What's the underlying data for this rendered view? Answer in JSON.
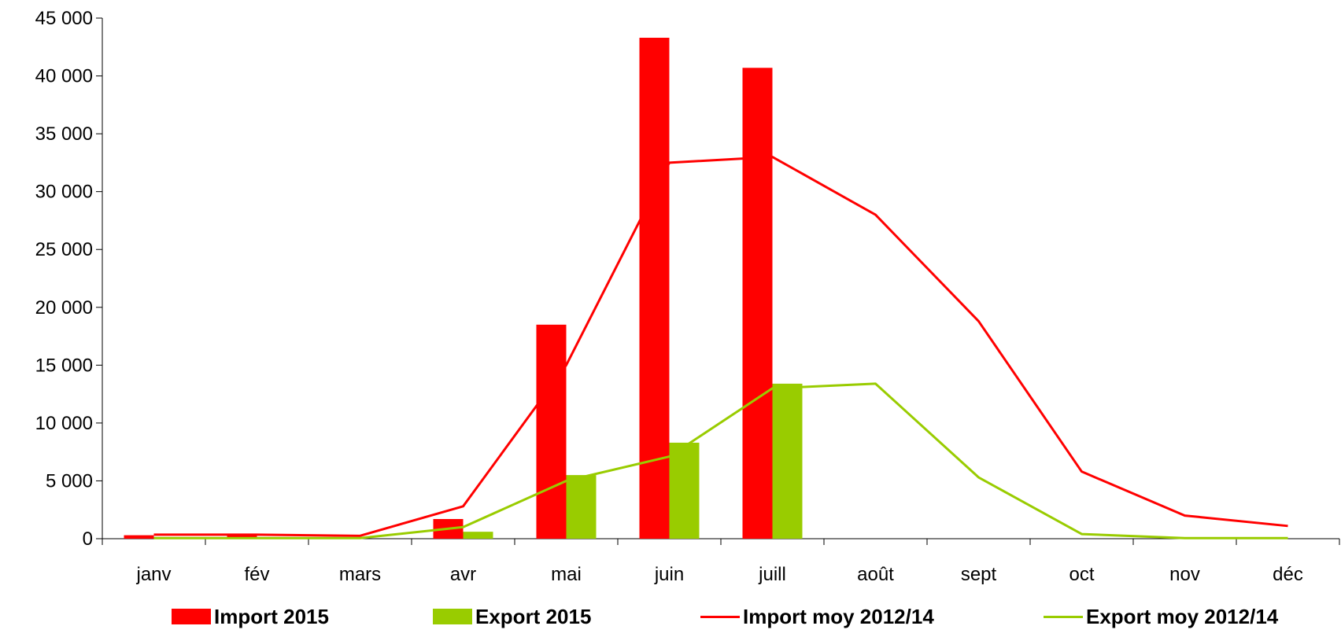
{
  "chart_data": {
    "type": "bar",
    "categories": [
      "janv",
      "fév",
      "mars",
      "avr",
      "mai",
      "juin",
      "juill",
      "août",
      "sept",
      "oct",
      "nov",
      "déc"
    ],
    "ylim": [
      0,
      45000
    ],
    "yticks": [
      {
        "value": 0,
        "label": "0"
      },
      {
        "value": 5000,
        "label": "5 000"
      },
      {
        "value": 10000,
        "label": "10 000"
      },
      {
        "value": 15000,
        "label": "15 000"
      },
      {
        "value": 20000,
        "label": "20 000"
      },
      {
        "value": 25000,
        "label": "25 000"
      },
      {
        "value": 30000,
        "label": "30 000"
      },
      {
        "value": 35000,
        "label": "35 000"
      },
      {
        "value": 40000,
        "label": "40 000"
      },
      {
        "value": 45000,
        "label": "45 000"
      }
    ],
    "grid": false,
    "legend_position": "bottom",
    "series": [
      {
        "name": "Import 2015",
        "type": "bar",
        "color": "#ff0000",
        "values": [
          300,
          400,
          0,
          1700,
          18500,
          43300,
          40700,
          null,
          null,
          null,
          null,
          null
        ]
      },
      {
        "name": "Export 2015",
        "type": "bar",
        "color": "#99cc00",
        "values": [
          100,
          100,
          0,
          600,
          5500,
          8300,
          13400,
          null,
          null,
          null,
          null,
          null
        ]
      },
      {
        "name": "Import moy 2012/14",
        "type": "line",
        "color": "#ff0000",
        "values": [
          350,
          350,
          250,
          2800,
          15000,
          32500,
          33000,
          28000,
          18800,
          5800,
          2000,
          1100
        ]
      },
      {
        "name": "Export moy 2012/14",
        "type": "line",
        "color": "#99cc00",
        "values": [
          50,
          50,
          50,
          1000,
          5000,
          7100,
          13000,
          13400,
          5300,
          400,
          50,
          50
        ]
      }
    ]
  }
}
